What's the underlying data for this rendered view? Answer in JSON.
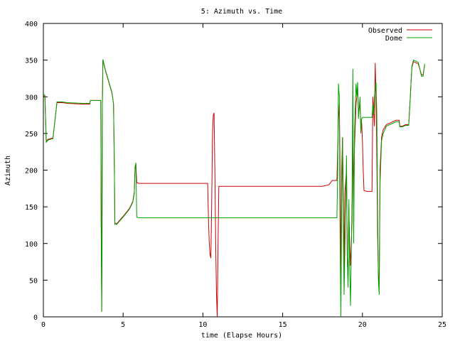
{
  "chart_data": {
    "type": "line",
    "title": "5: Azimuth vs. Time",
    "xlabel": "time (Elapse Hours)",
    "ylabel": "Azimuth",
    "xlim": [
      0,
      25
    ],
    "ylim": [
      0,
      400
    ],
    "x_ticks": [
      0,
      5,
      10,
      15,
      20,
      25
    ],
    "y_ticks": [
      0,
      50,
      100,
      150,
      200,
      250,
      300,
      350,
      400
    ],
    "grid": false,
    "legend_position": "top-right",
    "series": [
      {
        "name": "Observed",
        "color": "#cc0000",
        "points": [
          [
            0.0,
            302
          ],
          [
            0.1,
            300
          ],
          [
            0.18,
            240
          ],
          [
            0.3,
            242
          ],
          [
            0.6,
            244
          ],
          [
            0.85,
            292
          ],
          [
            1.2,
            292
          ],
          [
            1.5,
            291
          ],
          [
            2.5,
            290
          ],
          [
            2.9,
            290
          ],
          [
            2.95,
            295
          ],
          [
            3.6,
            295
          ],
          [
            3.62,
            150
          ],
          [
            3.66,
            7
          ],
          [
            3.68,
            200
          ],
          [
            3.7,
            290
          ],
          [
            3.73,
            350
          ],
          [
            3.9,
            335
          ],
          [
            4.1,
            320
          ],
          [
            4.3,
            305
          ],
          [
            4.4,
            290
          ],
          [
            4.45,
            200
          ],
          [
            4.48,
            128
          ],
          [
            4.6,
            127
          ],
          [
            5.0,
            137
          ],
          [
            5.4,
            148
          ],
          [
            5.6,
            157
          ],
          [
            5.7,
            170
          ],
          [
            5.75,
            200
          ],
          [
            5.8,
            207
          ],
          [
            5.85,
            183
          ],
          [
            6.0,
            182
          ],
          [
            8.0,
            182
          ],
          [
            10.0,
            182
          ],
          [
            10.3,
            182
          ],
          [
            10.35,
            130
          ],
          [
            10.4,
            100
          ],
          [
            10.45,
            85
          ],
          [
            10.5,
            80
          ],
          [
            10.55,
            150
          ],
          [
            10.6,
            250
          ],
          [
            10.65,
            275
          ],
          [
            10.7,
            278
          ],
          [
            10.75,
            200
          ],
          [
            10.8,
            100
          ],
          [
            10.85,
            30
          ],
          [
            10.9,
            0
          ],
          [
            10.95,
            100
          ],
          [
            11.0,
            178
          ],
          [
            11.5,
            178
          ],
          [
            15.0,
            178
          ],
          [
            17.5,
            178
          ],
          [
            17.9,
            180
          ],
          [
            18.1,
            186
          ],
          [
            18.4,
            186
          ],
          [
            18.5,
            270
          ],
          [
            18.55,
            290
          ],
          [
            18.6,
            200
          ],
          [
            18.65,
            50
          ],
          [
            18.7,
            200
          ],
          [
            18.75,
            245
          ],
          [
            18.8,
            160
          ],
          [
            18.85,
            60
          ],
          [
            18.9,
            170
          ],
          [
            19.0,
            200
          ],
          [
            19.05,
            80
          ],
          [
            19.1,
            50
          ],
          [
            19.15,
            150
          ],
          [
            19.2,
            100
          ],
          [
            19.25,
            70
          ],
          [
            19.35,
            130
          ],
          [
            19.4,
            240
          ],
          [
            19.45,
            150
          ],
          [
            19.5,
            230
          ],
          [
            19.6,
            290
          ],
          [
            19.65,
            300
          ],
          [
            19.7,
            310
          ],
          [
            19.75,
            280
          ],
          [
            19.85,
            290
          ],
          [
            19.9,
            260
          ],
          [
            19.95,
            265
          ],
          [
            20.0,
            240
          ],
          [
            20.05,
            200
          ],
          [
            20.1,
            172
          ],
          [
            20.3,
            171
          ],
          [
            20.6,
            171
          ],
          [
            20.65,
            300
          ],
          [
            20.7,
            280
          ],
          [
            20.75,
            260
          ],
          [
            20.8,
            346
          ],
          [
            20.85,
            300
          ],
          [
            20.9,
            220
          ],
          [
            20.95,
            112
          ],
          [
            21.0,
            60
          ],
          [
            21.05,
            40
          ],
          [
            21.1,
            200
          ],
          [
            21.2,
            245
          ],
          [
            21.3,
            255
          ],
          [
            21.5,
            262
          ],
          [
            21.8,
            265
          ],
          [
            22.1,
            268
          ],
          [
            22.3,
            268
          ],
          [
            22.35,
            260
          ],
          [
            22.5,
            260
          ],
          [
            22.7,
            262
          ],
          [
            22.9,
            262
          ],
          [
            23.0,
            300
          ],
          [
            23.05,
            320
          ],
          [
            23.1,
            340
          ],
          [
            23.2,
            348
          ],
          [
            23.5,
            345
          ],
          [
            23.7,
            330
          ],
          [
            23.8,
            330
          ],
          [
            23.9,
            343
          ]
        ]
      },
      {
        "name": "Dome",
        "color": "#00a000",
        "points": [
          [
            0.0,
            304
          ],
          [
            0.1,
            302
          ],
          [
            0.18,
            238
          ],
          [
            0.3,
            241
          ],
          [
            0.6,
            243
          ],
          [
            0.85,
            293
          ],
          [
            1.2,
            293
          ],
          [
            1.5,
            292
          ],
          [
            2.5,
            291
          ],
          [
            2.9,
            291
          ],
          [
            2.95,
            295
          ],
          [
            3.6,
            295
          ],
          [
            3.62,
            150
          ],
          [
            3.66,
            7
          ],
          [
            3.68,
            92
          ],
          [
            3.7,
            290
          ],
          [
            3.73,
            351
          ],
          [
            3.9,
            336
          ],
          [
            4.1,
            321
          ],
          [
            4.3,
            306
          ],
          [
            4.4,
            290
          ],
          [
            4.45,
            200
          ],
          [
            4.48,
            126
          ],
          [
            4.6,
            126
          ],
          [
            5.0,
            136
          ],
          [
            5.4,
            147
          ],
          [
            5.6,
            156
          ],
          [
            5.7,
            168
          ],
          [
            5.75,
            205
          ],
          [
            5.8,
            210
          ],
          [
            5.85,
            136
          ],
          [
            6.0,
            135
          ],
          [
            8.0,
            135
          ],
          [
            10.0,
            135
          ],
          [
            15.0,
            135
          ],
          [
            17.5,
            135
          ],
          [
            18.4,
            135
          ],
          [
            18.45,
            200
          ],
          [
            18.5,
            318
          ],
          [
            18.55,
            300
          ],
          [
            18.6,
            100
          ],
          [
            18.65,
            0
          ],
          [
            18.7,
            150
          ],
          [
            18.75,
            245
          ],
          [
            18.8,
            120
          ],
          [
            18.85,
            30
          ],
          [
            18.9,
            90
          ],
          [
            19.0,
            220
          ],
          [
            19.05,
            80
          ],
          [
            19.1,
            40
          ],
          [
            19.15,
            160
          ],
          [
            19.2,
            70
          ],
          [
            19.25,
            15
          ],
          [
            19.35,
            160
          ],
          [
            19.4,
            338
          ],
          [
            19.45,
            100
          ],
          [
            19.5,
            250
          ],
          [
            19.6,
            318
          ],
          [
            19.65,
            300
          ],
          [
            19.7,
            320
          ],
          [
            19.75,
            270
          ],
          [
            19.85,
            300
          ],
          [
            19.9,
            250
          ],
          [
            19.95,
            270
          ],
          [
            20.0,
            272
          ],
          [
            20.1,
            272
          ],
          [
            20.3,
            272
          ],
          [
            20.6,
            272
          ],
          [
            20.65,
            290
          ],
          [
            20.7,
            275
          ],
          [
            20.75,
            300
          ],
          [
            20.8,
            310
          ],
          [
            20.85,
            320
          ],
          [
            20.9,
            280
          ],
          [
            20.95,
            150
          ],
          [
            21.0,
            50
          ],
          [
            21.05,
            30
          ],
          [
            21.1,
            180
          ],
          [
            21.2,
            240
          ],
          [
            21.3,
            250
          ],
          [
            21.5,
            260
          ],
          [
            21.8,
            263
          ],
          [
            22.1,
            266
          ],
          [
            22.3,
            266
          ],
          [
            22.35,
            259
          ],
          [
            22.5,
            259
          ],
          [
            22.7,
            261
          ],
          [
            22.9,
            261
          ],
          [
            23.0,
            298
          ],
          [
            23.05,
            322
          ],
          [
            23.1,
            342
          ],
          [
            23.2,
            350
          ],
          [
            23.5,
            347
          ],
          [
            23.7,
            328
          ],
          [
            23.8,
            328
          ],
          [
            23.9,
            345
          ]
        ]
      }
    ]
  }
}
